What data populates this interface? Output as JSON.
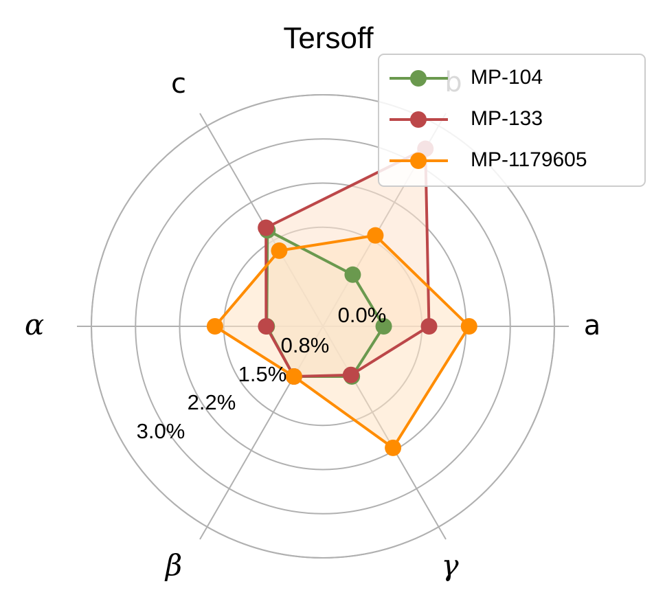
{
  "chart_data": {
    "type": "radar",
    "title": "Tersoff",
    "axes": [
      "a",
      "b",
      "c",
      "α",
      "β",
      "γ"
    ],
    "radial_ticks": [
      "0.0%",
      "0.8%",
      "1.5%",
      "2.2%",
      "3.0%"
    ],
    "rlim": [
      0.0,
      3.0
    ],
    "grid": true,
    "legend_position": "top-right",
    "series": [
      {
        "name": "MP-104",
        "color": "#6a994e",
        "fill": "#d8ead9",
        "values": [
          0.1,
          0.08,
          0.95,
          0.02,
          0.05,
          0.05
        ]
      },
      {
        "name": "MP-133",
        "color": "#bc4749",
        "fill": "#fde2cc",
        "values": [
          0.87,
          2.55,
          1.0,
          0.03,
          0.05,
          0.02
        ]
      },
      {
        "name": "MP-1179605",
        "color": "#ff8c00",
        "fill": "#ffe4c4",
        "values": [
          1.55,
          0.85,
          0.55,
          0.9,
          0.05,
          1.45
        ]
      }
    ]
  }
}
